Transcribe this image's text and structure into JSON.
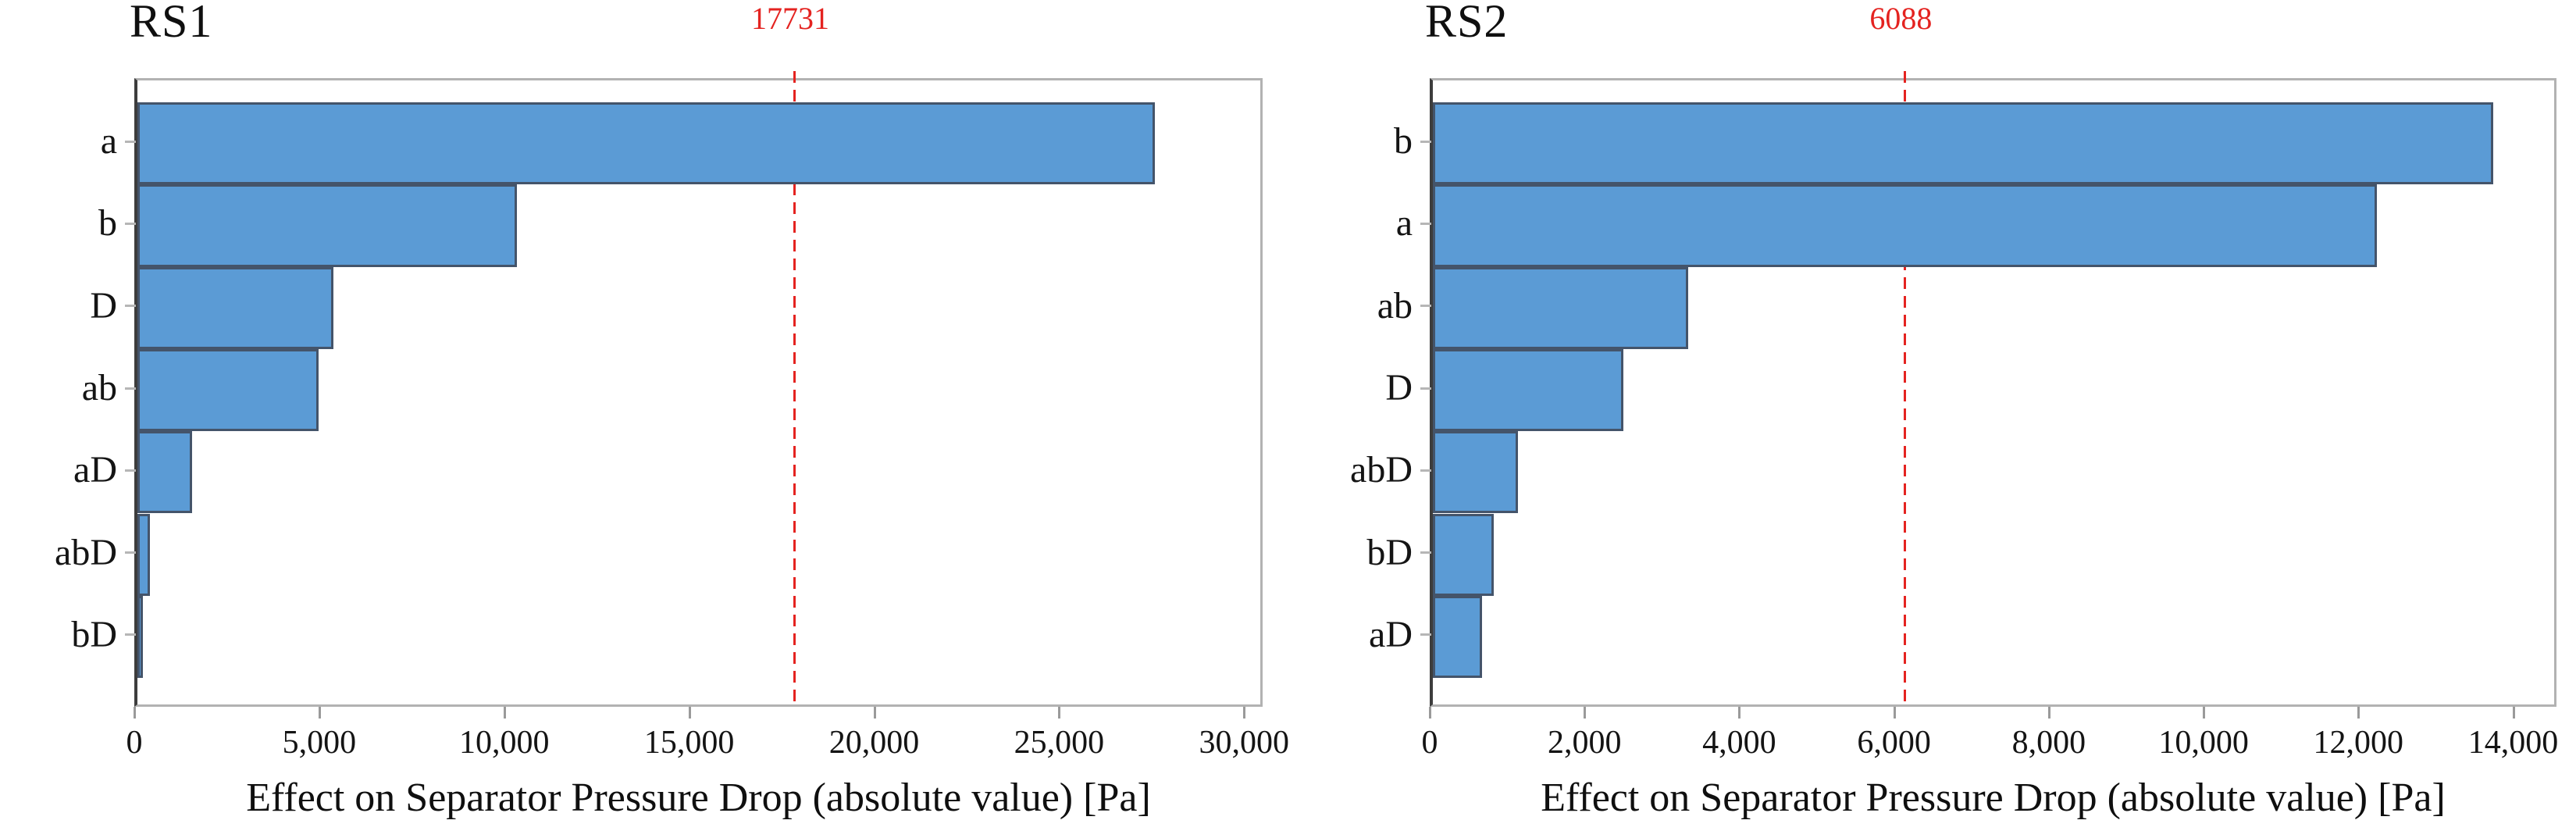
{
  "figure": {
    "background": "#ffffff",
    "panel_count": 2
  },
  "chart_data": [
    {
      "type": "bar",
      "orientation": "horizontal",
      "title": "RS1",
      "categories": [
        "a",
        "b",
        "D",
        "ab",
        "aD",
        "abD",
        "bD"
      ],
      "values": [
        27500,
        10250,
        5300,
        4900,
        1470,
        330,
        140
      ],
      "xlabel": "Effect on Separator Pressure Drop (absolute value) [Pa]",
      "ylabel": "",
      "xlim": [
        0,
        30500
      ],
      "xticks": [
        0,
        5000,
        10000,
        15000,
        20000,
        25000,
        30000
      ],
      "xtick_labels": [
        "0",
        "5,000",
        "10,000",
        "15,000",
        "20,000",
        "25,000",
        "30,000"
      ],
      "grid": false,
      "legend_position": "none",
      "reference_line": {
        "value": 17731,
        "label": "17731",
        "style": "dashed",
        "color": "#e42320"
      },
      "bar_color": "#5b9bd5",
      "bar_border_color": "#44546a"
    },
    {
      "type": "bar",
      "orientation": "horizontal",
      "title": "RS2",
      "categories": [
        "b",
        "a",
        "ab",
        "D",
        "abD",
        "bD",
        "aD"
      ],
      "values": [
        13700,
        12200,
        3300,
        2460,
        1100,
        790,
        640
      ],
      "xlabel": "Effect on Separator Pressure Drop (absolute value) [Pa]",
      "ylabel": "",
      "xlim": [
        0,
        14560
      ],
      "xticks": [
        0,
        2000,
        4000,
        6000,
        8000,
        10000,
        12000,
        14000
      ],
      "xtick_labels": [
        "0",
        "2,000",
        "4,000",
        "6,000",
        "8,000",
        "10,000",
        "12,000",
        "14,000"
      ],
      "grid": false,
      "legend_position": "none",
      "reference_line": {
        "value": 6088,
        "label": "6088",
        "style": "dashed",
        "color": "#e42320"
      },
      "bar_color": "#5b9bd5",
      "bar_border_color": "#44546a"
    }
  ]
}
